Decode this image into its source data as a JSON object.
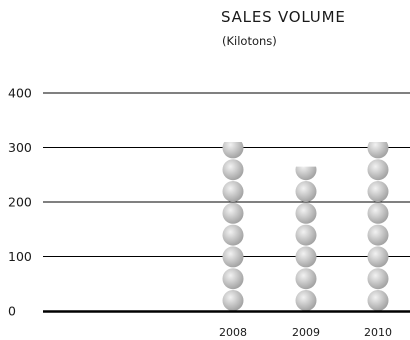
{
  "chart_data": {
    "type": "bar",
    "title": "SALES VOLUME",
    "subtitle": "(Kilotons)",
    "xlabel": "",
    "ylabel": "",
    "categories": [
      "2008",
      "2009",
      "2010"
    ],
    "values": [
      310,
      265,
      310
    ],
    "ylim": [
      0,
      400
    ],
    "yticks": [
      0,
      100,
      200,
      300,
      400
    ],
    "ytick_labels": [
      "0",
      "100",
      "200",
      "300",
      "400"
    ],
    "grid": true,
    "legend": "none",
    "mark_style": "stacked-spheres",
    "colors": {
      "sphere_light": "#f2f2f2",
      "sphere_dark": "#9e9e9e",
      "grid": "#000000",
      "axis": "#000000"
    }
  }
}
